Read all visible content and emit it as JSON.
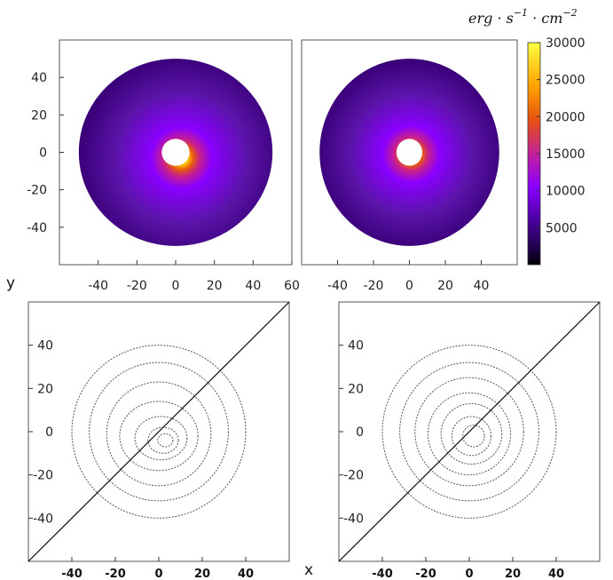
{
  "colorbar_unit": {
    "base": "erg · s",
    "exp1": "−1",
    "mid": " · cm",
    "exp2": "−2"
  },
  "shared_labels": {
    "y": "y",
    "x": "x"
  },
  "colors": {
    "colormap": [
      "#000000",
      "#3a0078",
      "#8a00ff",
      "#c8208a",
      "#e85810",
      "#ffd000",
      "#ffff60"
    ],
    "contour": "#555555",
    "diagonal": "#111111",
    "frame": "#555555"
  },
  "chart_data": [
    {
      "type": "heatmap",
      "id": "top-left",
      "xlim": [
        -60,
        60
      ],
      "ylim": [
        -60,
        60
      ],
      "xticks": [
        -40,
        -20,
        0,
        20,
        40,
        60
      ],
      "yticks": [
        40,
        20,
        0,
        -20,
        -40
      ],
      "disk_outer_radius": 50,
      "disk_inner_radius": 4,
      "peak_position": [
        3,
        -3
      ],
      "peak_value": 30000,
      "edge_value": 1500
    },
    {
      "type": "heatmap",
      "id": "top-right",
      "xlim": [
        -60,
        60
      ],
      "ylim": [
        -60,
        60
      ],
      "xticks": [
        -40,
        -20,
        0,
        20,
        40
      ],
      "yticks": [],
      "disk_outer_radius": 50,
      "disk_inner_radius": 4,
      "peak_position": [
        1,
        -1
      ],
      "peak_value": 30000,
      "edge_value": 1500
    },
    {
      "type": "colorbar",
      "id": "colorbar",
      "range": [
        0,
        30000
      ],
      "ticks": [
        30000,
        25000,
        20000,
        15000,
        10000,
        5000
      ]
    },
    {
      "type": "line",
      "id": "bottom-left",
      "xlim": [
        -60,
        60
      ],
      "ylim": [
        -60,
        60
      ],
      "xticks": [
        -40,
        -20,
        0,
        20,
        40
      ],
      "yticks": [
        40,
        20,
        0,
        -20,
        -40
      ],
      "diagonal": [
        [
          -60,
          -60
        ],
        [
          60,
          60
        ]
      ],
      "contours": [
        {
          "cx": 0,
          "cy": 0,
          "rx": 40,
          "ry": 40
        },
        {
          "cx": 0,
          "cy": 0,
          "rx": 32,
          "ry": 32
        },
        {
          "cx": 0,
          "cy": -1,
          "rx": 24,
          "ry": 24
        },
        {
          "cx": 0,
          "cy": -2,
          "rx": 18,
          "ry": 16
        },
        {
          "cx": 1,
          "cy": -3,
          "rx": 12,
          "ry": 10
        },
        {
          "cx": 2,
          "cy": -4,
          "rx": 7,
          "ry": 6
        },
        {
          "cx": 3,
          "cy": -4,
          "rx": 3.5,
          "ry": 3
        }
      ]
    },
    {
      "type": "line",
      "id": "bottom-right",
      "xlim": [
        -60,
        60
      ],
      "ylim": [
        -60,
        60
      ],
      "xticks": [
        -40,
        -20,
        0,
        20,
        40
      ],
      "yticks": [
        40,
        20,
        0,
        -20,
        -40
      ],
      "diagonal": [
        [
          -60,
          -60
        ],
        [
          60,
          60
        ]
      ],
      "contours": [
        {
          "cx": 0,
          "cy": 0,
          "rx": 40,
          "ry": 40
        },
        {
          "cx": 0,
          "cy": 0,
          "rx": 32,
          "ry": 32
        },
        {
          "cx": 0,
          "cy": 0,
          "rx": 25,
          "ry": 25
        },
        {
          "cx": 0,
          "cy": -1,
          "rx": 19,
          "ry": 19
        },
        {
          "cx": 1,
          "cy": -1,
          "rx": 14,
          "ry": 14
        },
        {
          "cx": 1,
          "cy": -2,
          "rx": 9,
          "ry": 9
        },
        {
          "cx": 2,
          "cy": -2,
          "rx": 5,
          "ry": 5
        }
      ]
    }
  ]
}
